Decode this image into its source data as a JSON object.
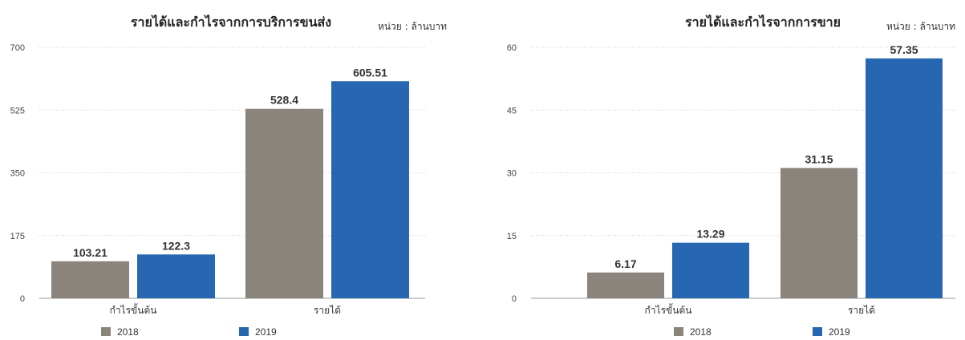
{
  "chart_data": [
    {
      "type": "bar",
      "title": "รายได้และกำไรจากการบริการขนส่ง",
      "unit": "หน่วย : ล้านบาท",
      "categories": [
        "กำไรขั้นต้น",
        "รายได้"
      ],
      "series": [
        {
          "name": "2018",
          "color": "#8a847c",
          "values": [
            103.21,
            528.4
          ]
        },
        {
          "name": "2019",
          "color": "#2767b1",
          "values": [
            122.3,
            605.51
          ]
        }
      ],
      "data_labels": [
        [
          "103.21",
          "122.3"
        ],
        [
          "528.4",
          "605.51"
        ]
      ],
      "ylim": [
        0,
        700
      ],
      "yticks": [
        0,
        175,
        350,
        525,
        700
      ],
      "grid": true,
      "legend": "bottom-left"
    },
    {
      "type": "bar",
      "title": "รายได้และกำไรจากการขาย",
      "unit": "หน่วย : ล้านบาท",
      "categories": [
        "กำไรขั้นต้น",
        "รายได้"
      ],
      "series": [
        {
          "name": "2018",
          "color": "#8a847c",
          "values": [
            6.17,
            31.15
          ]
        },
        {
          "name": "2019",
          "color": "#2767b1",
          "values": [
            13.29,
            57.35
          ]
        }
      ],
      "data_labels": [
        [
          "6.17",
          "13.29"
        ],
        [
          "31.15",
          "57.35"
        ]
      ],
      "ylim": [
        0,
        60
      ],
      "yticks": [
        0,
        15,
        30,
        45,
        60
      ],
      "grid": true,
      "legend": "bottom-left"
    }
  ]
}
